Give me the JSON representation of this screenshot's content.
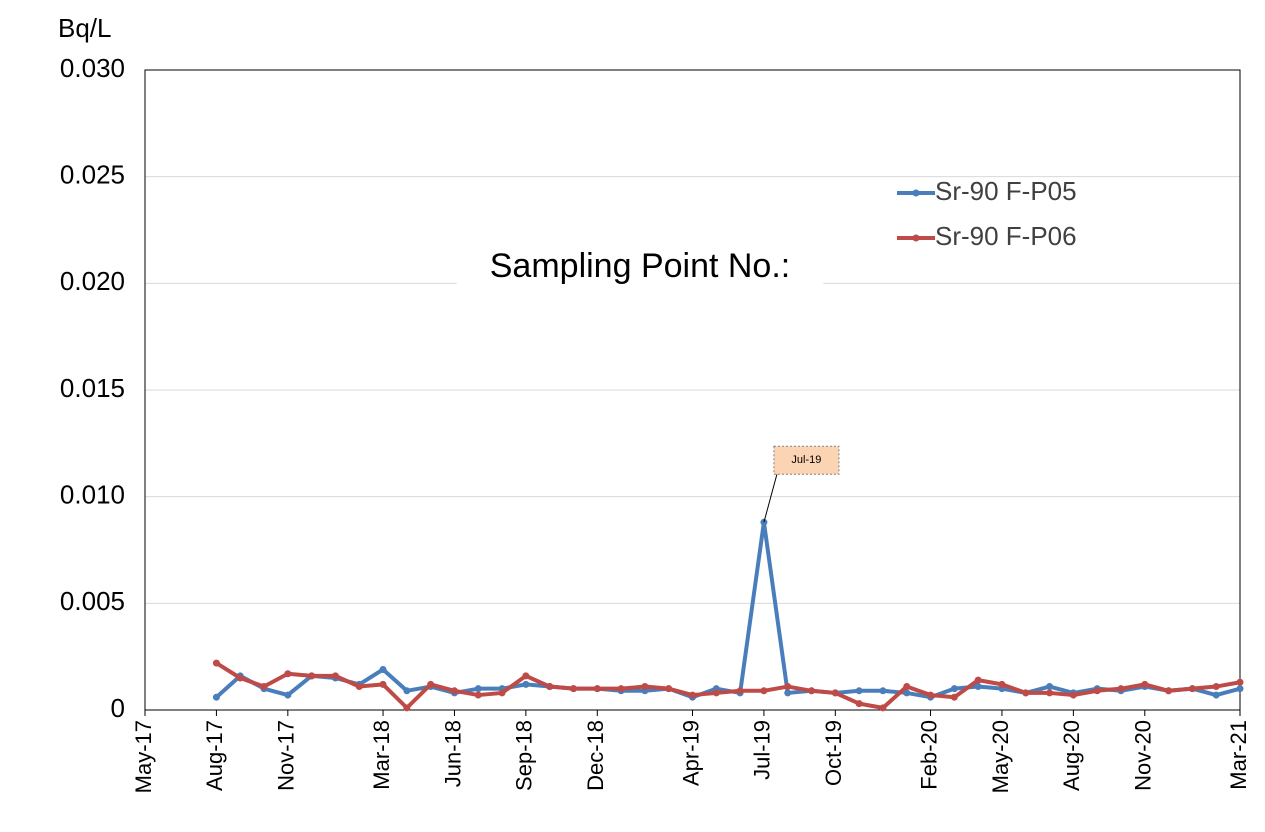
{
  "chart_data": {
    "type": "line",
    "y_unit": "Bq/L",
    "legend_title": "Sampling  Point No.:",
    "xlim": [
      "2017-05",
      "2021-03"
    ],
    "xticks": [
      {
        "value": "2017-05",
        "label": "May-17"
      },
      {
        "value": "2017-08",
        "label": "Aug-17"
      },
      {
        "value": "2017-11",
        "label": "Nov-17"
      },
      {
        "value": "2018-03",
        "label": "Mar-18"
      },
      {
        "value": "2018-06",
        "label": "Jun-18"
      },
      {
        "value": "2018-09",
        "label": "Sep-18"
      },
      {
        "value": "2018-12",
        "label": "Dec-18"
      },
      {
        "value": "2019-04",
        "label": "Apr-19"
      },
      {
        "value": "2019-07",
        "label": "Jul-19"
      },
      {
        "value": "2019-10",
        "label": "Oct-19"
      },
      {
        "value": "2020-02",
        "label": "Feb-20"
      },
      {
        "value": "2020-05",
        "label": "May-20"
      },
      {
        "value": "2020-08",
        "label": "Aug-20"
      },
      {
        "value": "2020-11",
        "label": "Nov-20"
      },
      {
        "value": "2021-03",
        "label": "Mar-21"
      }
    ],
    "ylim": [
      0,
      0.03
    ],
    "yticks": [
      0,
      0.005,
      {
        "value": 0.01,
        "label": "0.010"
      },
      0.015,
      {
        "value": 0.02,
        "label": "0.020"
      },
      0.025,
      {
        "value": 0.03,
        "label": "0.030"
      }
    ],
    "grid": true,
    "x": [
      "2017-08",
      "2017-09",
      "2017-10",
      "2017-11",
      "2017-12",
      "2018-01",
      "2018-02",
      "2018-03",
      "2018-04",
      "2018-05",
      "2018-06",
      "2018-07",
      "2018-08",
      "2018-09",
      "2018-10",
      "2018-11",
      "2018-12",
      "2019-01",
      "2019-02",
      "2019-03",
      "2019-04",
      "2019-05",
      "2019-06",
      "2019-07",
      "2019-08",
      "2019-09",
      "2019-10",
      "2019-11",
      "2019-12",
      "2020-01",
      "2020-02",
      "2020-03",
      "2020-04",
      "2020-05",
      "2020-06",
      "2020-07",
      "2020-08",
      "2020-09",
      "2020-10",
      "2020-11",
      "2020-12",
      "2021-01",
      "2021-02",
      "2021-03"
    ],
    "series": [
      {
        "name": "Sr-90 F-P05",
        "color": "#4a7ebb",
        "values": [
          0.0006,
          0.0016,
          0.001,
          0.0007,
          0.0016,
          0.0015,
          0.0012,
          0.0019,
          0.0009,
          0.0011,
          0.0008,
          0.001,
          0.001,
          0.0012,
          0.0011,
          0.001,
          0.001,
          0.0009,
          0.0009,
          0.001,
          0.0006,
          0.001,
          0.0008,
          0.0088,
          0.0008,
          0.0009,
          0.0008,
          0.0009,
          0.0009,
          0.0008,
          0.0006,
          0.001,
          0.0011,
          0.001,
          0.0008,
          0.0011,
          0.0008,
          0.001,
          0.0009,
          0.0011,
          0.0009,
          0.001,
          0.0007,
          0.001
        ]
      },
      {
        "name": "Sr-90 F-P06",
        "color": "#be4b48",
        "values": [
          0.0022,
          0.0015,
          0.0011,
          0.0017,
          0.0016,
          0.0016,
          0.0011,
          0.0012,
          0.0001,
          0.0012,
          0.0009,
          0.0007,
          0.0008,
          0.0016,
          0.0011,
          0.001,
          0.001,
          0.001,
          0.0011,
          0.001,
          0.0007,
          0.0008,
          0.0009,
          0.0009,
          0.0011,
          0.0009,
          0.0008,
          0.0003,
          0.0001,
          0.0011,
          0.0007,
          0.0006,
          0.0014,
          0.0012,
          0.0008,
          0.0008,
          0.0007,
          0.0009,
          0.001,
          0.0012,
          0.0009,
          0.001,
          0.0011,
          0.0013
        ]
      }
    ],
    "annotations": [
      {
        "text": "Jul-19",
        "x": "2019-07"
      }
    ]
  }
}
